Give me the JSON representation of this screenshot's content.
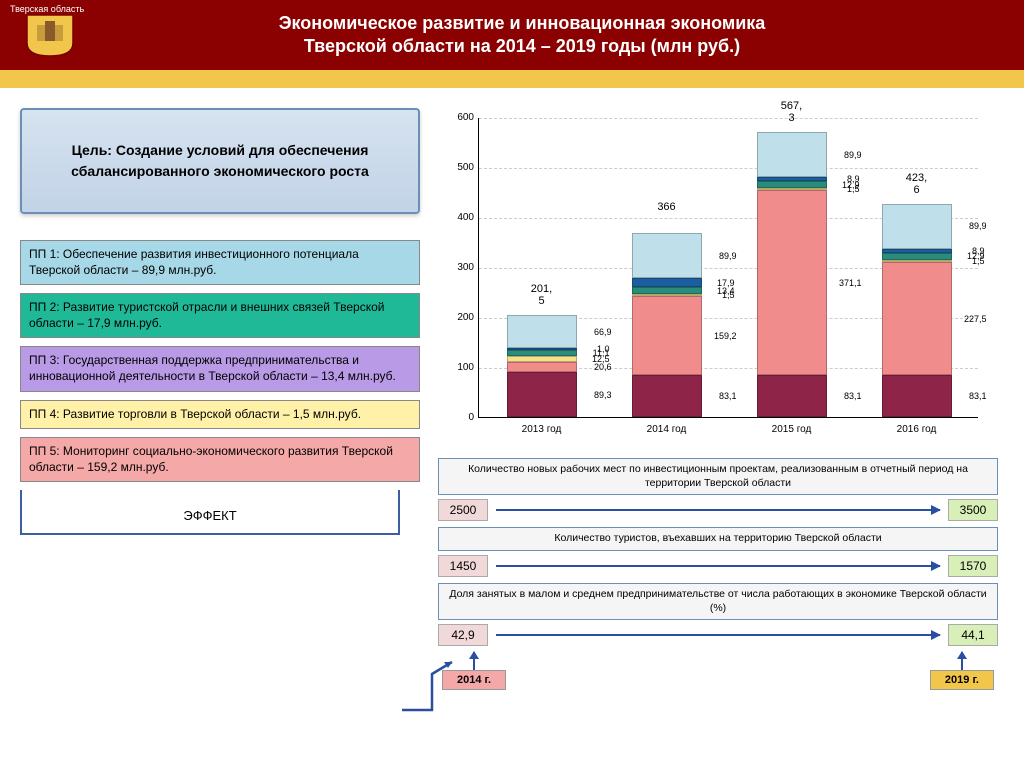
{
  "region_label": "Тверская область",
  "title_line1": "Экономическое развитие и инновационная экономика",
  "title_line2": "Тверской области на 2014 – 2019 годы (млн руб.)",
  "goal": "Цель: Создание условий для обеспечения сбалансированного экономического роста",
  "pp": [
    {
      "text": "ПП 1: Обеспечение развития инвестиционного потенциала Тверской области – 89,9 млн.руб.",
      "bg": "#a7d8e8"
    },
    {
      "text": "ПП 2: Развитие туристской отрасли и внешних связей Тверской области – 17,9 млн.руб.",
      "bg": "#1fb998"
    },
    {
      "text": "ПП 3: Государственная поддержка предпринимательства и инновационной деятельности в Тверской области – 13,4 млн.руб.",
      "bg": "#b99ae6"
    },
    {
      "text": "ПП 4: Развитие торговли в Тверской области – 1,5 млн.руб.",
      "bg": "#fff2a8"
    },
    {
      "text": "ПП 5: Мониторинг социально-экономического развития Тверской области – 159,2 млн.руб.",
      "bg": "#f4a8a8"
    }
  ],
  "effect_label": "ЭФФЕКТ",
  "chart": {
    "type": "stacked-bar",
    "ylim": [
      0,
      600
    ],
    "ytick_step": 100,
    "categories": [
      "2013 год",
      "2014 год",
      "2015 год",
      "2016 год"
    ],
    "totals": [
      "201,\n5",
      "366",
      "567,\n3",
      "423,\n6"
    ],
    "segment_colors": [
      "#8e2548",
      "#f08c8c",
      "#f5e08c",
      "#2a8c7a",
      "#1c5fa0",
      "#bfe0ea"
    ],
    "stacks": [
      [
        {
          "v": 89.3,
          "l": "89,3"
        },
        {
          "v": 20.6,
          "l": "20,6"
        },
        {
          "v": 12.5,
          "l": "12,5"
        },
        {
          "v": 11.1,
          "l": "11,1"
        },
        {
          "v": 1.0,
          "l": "1,0"
        },
        {
          "v": 66.9,
          "l": "66,9"
        }
      ],
      [
        {
          "v": 83.1,
          "l": "83,1"
        },
        {
          "v": 159.2,
          "l": "159,2"
        },
        {
          "v": 1.5,
          "l": "1,5"
        },
        {
          "v": 13.4,
          "l": "13,4"
        },
        {
          "v": 17.9,
          "l": "17,9"
        },
        {
          "v": 89.9,
          "l": "89,9"
        }
      ],
      [
        {
          "v": 83.1,
          "l": "83,1"
        },
        {
          "v": 371.1,
          "l": "371,1"
        },
        {
          "v": 1.5,
          "l": "1,5"
        },
        {
          "v": 12.9,
          "l": "12,9"
        },
        {
          "v": 8.9,
          "l": "8,9"
        },
        {
          "v": 89.9,
          "l": "89,9"
        }
      ],
      [
        {
          "v": 83.1,
          "l": "83,1"
        },
        {
          "v": 227.5,
          "l": "227,5"
        },
        {
          "v": 1.5,
          "l": "1,5"
        },
        {
          "v": 12.9,
          "l": "12,9"
        },
        {
          "v": 8.9,
          "l": "8,9"
        },
        {
          "v": 89.9,
          "l": "89,9"
        }
      ]
    ]
  },
  "indicators": [
    {
      "label": "Количество новых рабочих мест по инвестиционным проектам, реализованным в отчетный период на территории Тверской области",
      "start": "2500",
      "end": "3500"
    },
    {
      "label": "Количество туристов, въехавших на территорию Тверской области",
      "start": "1450",
      "end": "1570"
    },
    {
      "label": "Доля занятых в малом и среднем предпринимательстве от числа работающих в экономике Тверской области (%)",
      "start": "42,9",
      "end": "44,1"
    }
  ],
  "year_start": "2014 г.",
  "year_end": "2019 г.",
  "colors": {
    "header": "#8b0000",
    "yellow": "#f2c64a",
    "arrow": "#2a4fa0"
  }
}
